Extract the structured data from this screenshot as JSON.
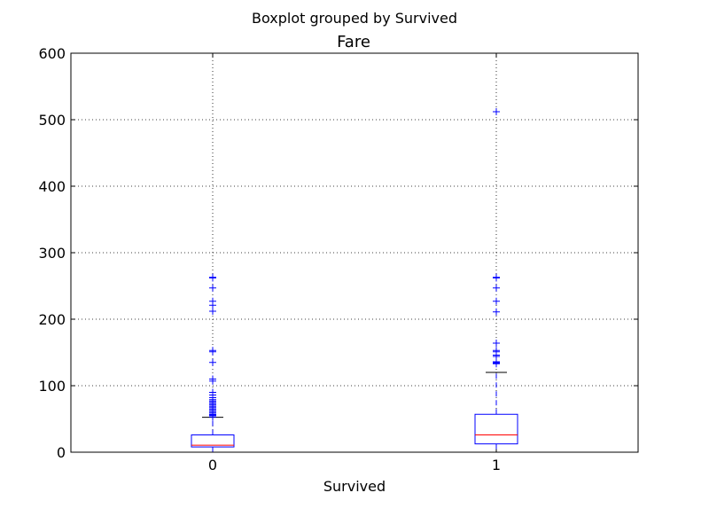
{
  "chart_data": {
    "type": "boxplot",
    "suptitle": "Boxplot grouped by Survived",
    "title": "Fare",
    "xlabel": "Survived",
    "ylabel": "",
    "ylim": [
      0,
      600
    ],
    "yticks": [
      0,
      100,
      200,
      300,
      400,
      500,
      600
    ],
    "categories": [
      "0",
      "1"
    ],
    "grid": true,
    "colors": {
      "box": "#0000ff",
      "median": "#ff0000",
      "caps": "#000000",
      "flier": "#0000ff"
    },
    "boxes": [
      {
        "category": "0",
        "whisker_low": 0,
        "q1": 7.9,
        "median": 10.5,
        "q3": 26,
        "whisker_high": 52.5,
        "outliers": [
          53,
          55,
          56,
          57,
          59,
          61,
          63,
          65,
          67,
          69,
          71,
          73,
          75,
          77,
          79,
          82,
          86,
          90,
          107,
          110,
          135,
          151,
          153,
          212,
          221,
          227,
          247,
          262,
          263
        ]
      },
      {
        "category": "1",
        "whisker_low": 0,
        "q1": 12.5,
        "median": 26,
        "q3": 57,
        "whisker_high": 120,
        "outliers": [
          133,
          134,
          135,
          136,
          144,
          146,
          151,
          153,
          164,
          211,
          227,
          247,
          262,
          263,
          512
        ]
      }
    ]
  }
}
